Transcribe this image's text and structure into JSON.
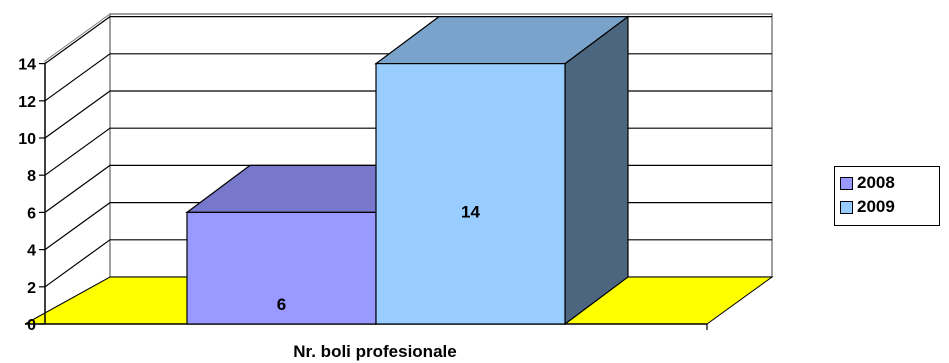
{
  "chart_data": {
    "type": "bar",
    "three_d": true,
    "categories": [
      "Nr. boli profesionale"
    ],
    "series": [
      {
        "name": "2008",
        "values": [
          6
        ],
        "color": "#9999ff",
        "top_color": "#7777cc",
        "side_color": "#5b5b99"
      },
      {
        "name": "2009",
        "values": [
          14
        ],
        "color": "#99ccff",
        "top_color": "#7aa3cc",
        "side_color": "#4d6680"
      }
    ],
    "xlabel": "",
    "ylabel": "",
    "ylim": [
      0,
      14
    ],
    "yticks": [
      "0",
      "2",
      "4",
      "6",
      "8",
      "10",
      "12",
      "14"
    ],
    "grid": true,
    "floor_color": "#ffff00",
    "legend_position": "right"
  }
}
